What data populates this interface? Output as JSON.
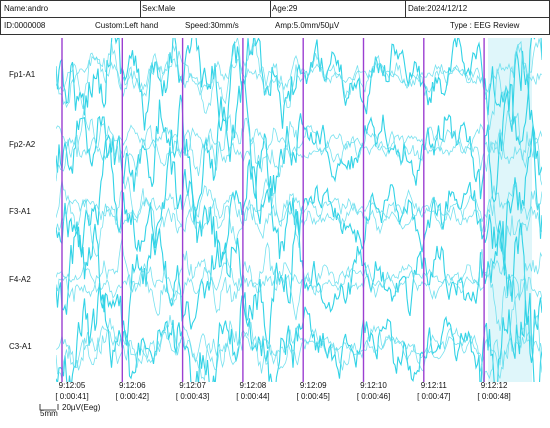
{
  "header": {
    "rows": [
      [
        "Name:andro",
        "Sex:Male",
        "Age:29",
        "Date:2024/12/12"
      ],
      [
        "ID:0000008",
        "Custom:Left hand",
        "Speed:30mm/s",
        "Amp:5.0mm/50µV",
        "Type : EEG Review"
      ]
    ]
  },
  "channels": [
    "Fp1-A1",
    "Fp2-A2",
    "F3-A1",
    "F4-A2",
    "C3-A1"
  ],
  "time_marks": [
    {
      "time": "9:12:05",
      "elapsed": "[ 0:00:41]"
    },
    {
      "time": "9:12:06",
      "elapsed": "[ 0:00:42]"
    },
    {
      "time": "9:12:07",
      "elapsed": "[ 0:00:43]"
    },
    {
      "time": "9:12:08",
      "elapsed": "[ 0:00:44]"
    },
    {
      "time": "9:12:09",
      "elapsed": "[ 0:00:45]"
    },
    {
      "time": "9:12:10",
      "elapsed": "[ 0:00:46]"
    },
    {
      "time": "9:12:11",
      "elapsed": "[ 0:00:47]"
    },
    {
      "time": "9:12:12",
      "elapsed": "[ 0:00:48]"
    }
  ],
  "scale": {
    "time": "5mm",
    "amp": "20µV(Eeg)"
  }
}
